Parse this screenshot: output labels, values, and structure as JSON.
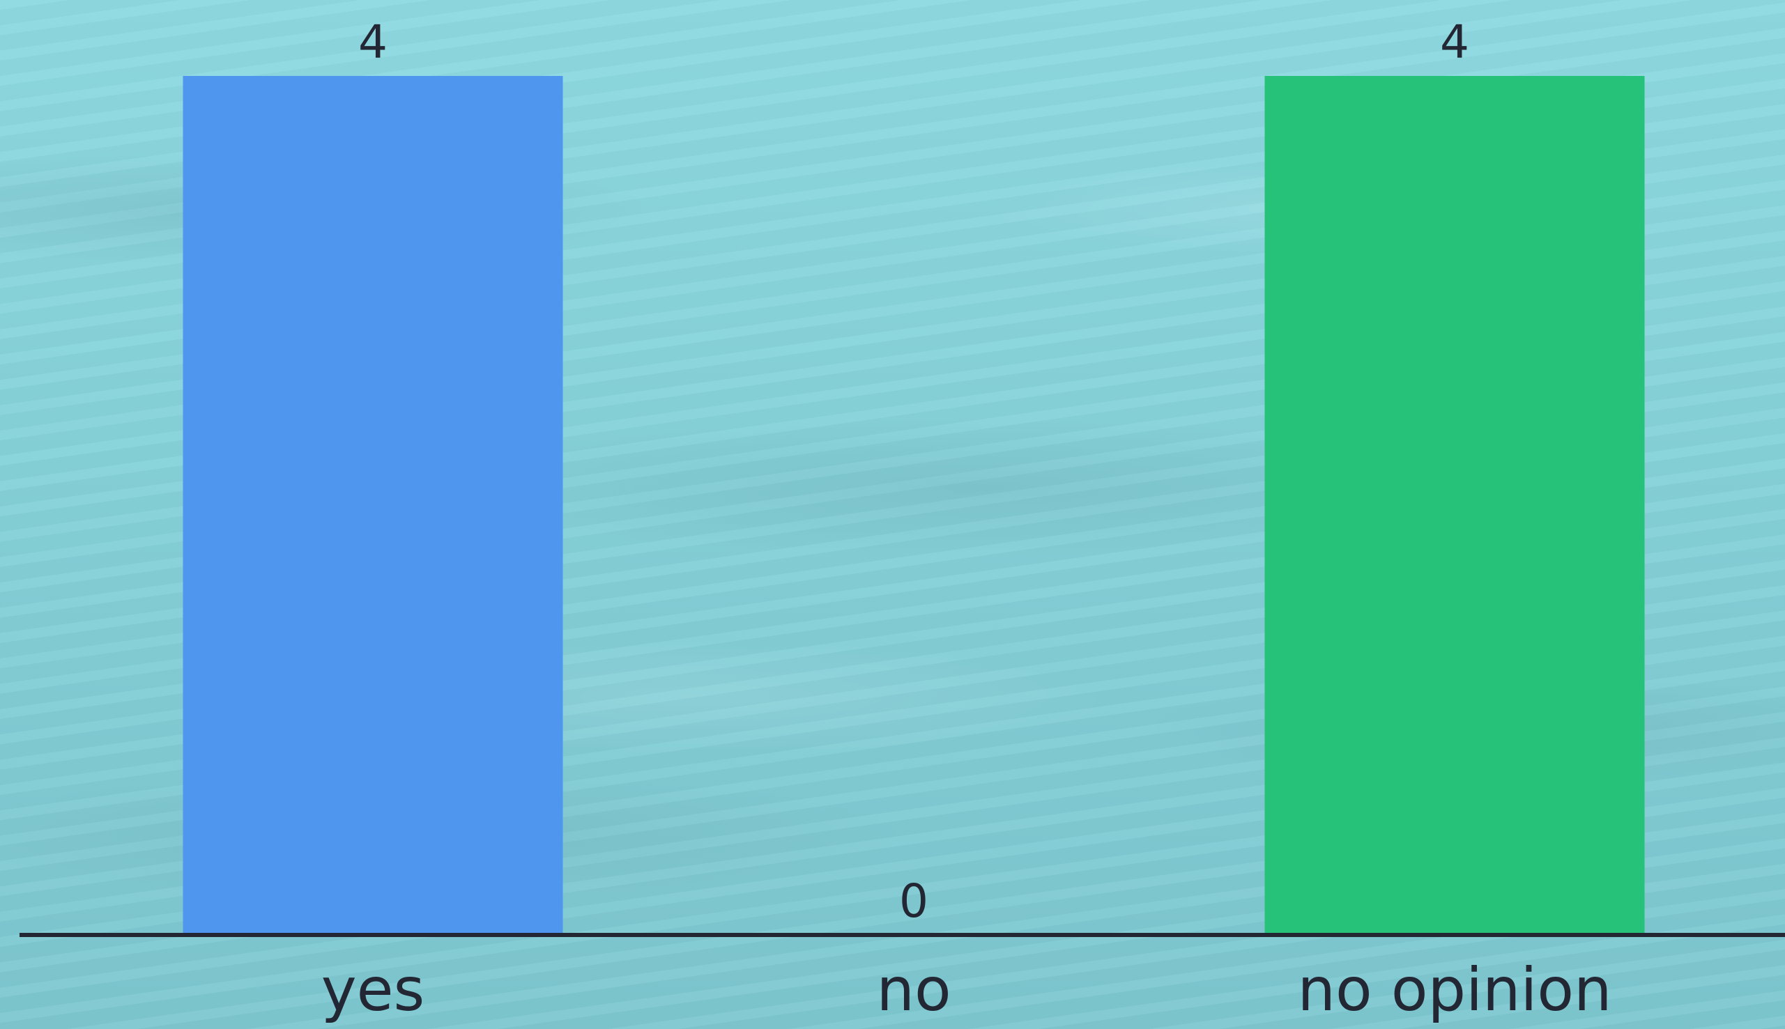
{
  "chart_data": {
    "type": "bar",
    "categories": [
      "yes",
      "no",
      "no opinion"
    ],
    "values": [
      4,
      0,
      4
    ],
    "colors": [
      "#4f96ef",
      "#8fdae2",
      "#27c27a"
    ],
    "title": "",
    "xlabel": "",
    "ylabel": "",
    "ylim": [
      0,
      4
    ],
    "grid": false,
    "legend": "none",
    "data_labels": [
      "4",
      "0",
      "4"
    ]
  },
  "theme": {
    "axis_color": "#222733",
    "text_color": "#222733"
  }
}
